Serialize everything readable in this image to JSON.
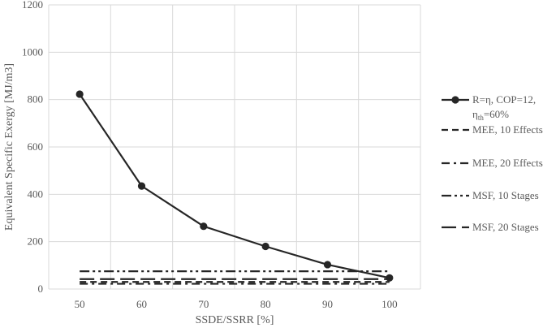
{
  "chart_data": {
    "type": "line",
    "title": "",
    "xlabel": "SSDE/SSRR [%]",
    "ylabel": "Equivalent Specific Exergy [MJ/m3]",
    "x": [
      50,
      60,
      70,
      80,
      90,
      100
    ],
    "xlim": [
      45,
      105
    ],
    "ylim": [
      0,
      1200
    ],
    "xticks": [
      "50",
      "60",
      "70",
      "80",
      "90",
      "100"
    ],
    "yticks": [
      "0",
      "200",
      "400",
      "600",
      "800",
      "1000",
      "1200"
    ],
    "grid": true,
    "legend_position": "right",
    "series": [
      {
        "name": "R=η, COP=12, ηth=60%",
        "name_line1": "R=η, COP=12,",
        "name_line2_base": "η",
        "name_line2_sub": "th",
        "name_line2_rest": "=60%",
        "values": [
          823,
          435,
          265,
          180,
          103,
          47
        ],
        "style": "solid-marker",
        "color": "#262626"
      },
      {
        "name": "MEE, 10 Effects",
        "values": [
          30,
          30,
          30,
          30,
          30,
          30
        ],
        "style": "dash",
        "color": "#262626"
      },
      {
        "name": "MEE, 20 Effects",
        "values": [
          22,
          22,
          22,
          22,
          22,
          22
        ],
        "style": "dash-dot",
        "color": "#262626"
      },
      {
        "name": "MSF, 10 Stages",
        "values": [
          75,
          75,
          75,
          75,
          75,
          75
        ],
        "style": "dash-dot-dot",
        "color": "#262626"
      },
      {
        "name": "MSF, 20 Stages",
        "values": [
          42,
          42,
          42,
          42,
          42,
          42
        ],
        "style": "long-dash",
        "color": "#262626"
      }
    ]
  }
}
